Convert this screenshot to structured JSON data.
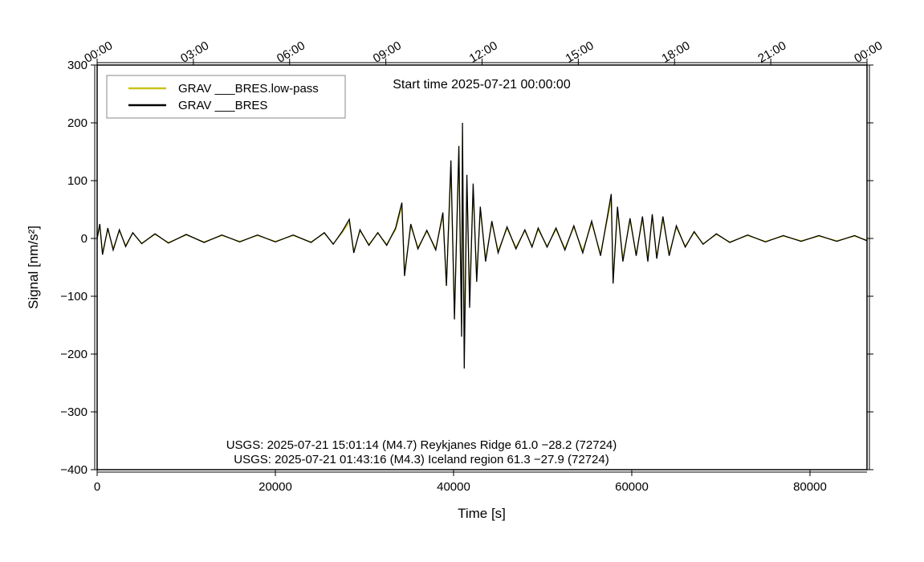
{
  "chart_data": {
    "type": "line",
    "title": "Start time 2025-07-21 00:00:00",
    "xlabel": "Time [s]",
    "ylabel": "Signal [nm/s²]",
    "annotations": [
      "USGS: 2025-07-21 15:01:14 (M4.7) Reykjanes Ridge 61.0 −28.2 (72724)",
      "USGS: 2025-07-21 01:43:16 (M4.3) Iceland region 61.3 −27.9 (72724)"
    ],
    "legend": "upper left",
    "xlim": [
      0,
      86400
    ],
    "xticks": [
      0,
      20000,
      40000,
      60000,
      80000
    ],
    "x2ticks": [
      {
        "value": 0,
        "label": "00:00"
      },
      {
        "value": 10800,
        "label": "03:00"
      },
      {
        "value": 21600,
        "label": "06:00"
      },
      {
        "value": 32400,
        "label": "09:00"
      },
      {
        "value": 43200,
        "label": "12:00"
      },
      {
        "value": 54000,
        "label": "15:00"
      },
      {
        "value": 64800,
        "label": "18:00"
      },
      {
        "value": 75600,
        "label": "21:00"
      },
      {
        "value": 86400,
        "label": "00:00"
      }
    ],
    "ylim": [
      -400,
      300
    ],
    "yticks": [
      {
        "value": -400,
        "label": "−400"
      },
      {
        "value": -300,
        "label": "−300"
      },
      {
        "value": -200,
        "label": "−200"
      },
      {
        "value": -100,
        "label": "−100"
      },
      0,
      100,
      200,
      300
    ],
    "x": [
      0,
      300,
      600,
      1200,
      1800,
      2500,
      3200,
      4000,
      5000,
      6500,
      8000,
      10000,
      12000,
      14000,
      16000,
      18000,
      20000,
      22000,
      24000,
      25500,
      26500,
      27500,
      28300,
      28800,
      29500,
      30500,
      31500,
      32500,
      33500,
      34200,
      34500,
      35200,
      36000,
      37000,
      38000,
      38800,
      39200,
      39700,
      40100,
      40600,
      40900,
      41000,
      41200,
      41500,
      41800,
      42200,
      42600,
      43000,
      43600,
      44300,
      45000,
      46000,
      47000,
      48000,
      48800,
      49500,
      50500,
      51500,
      52500,
      53500,
      54500,
      55500,
      56500,
      57400,
      57700,
      57900,
      58400,
      59000,
      59800,
      60500,
      61200,
      61800,
      62300,
      62800,
      63500,
      64200,
      65000,
      66000,
      67000,
      68000,
      69500,
      71000,
      73000,
      75000,
      77000,
      79000,
      81000,
      83000,
      85000,
      86400
    ],
    "series": [
      {
        "name": "GRAV ___BRES",
        "color": "#000000",
        "values": [
          0,
          25,
          -28,
          18,
          -20,
          15,
          -14,
          10,
          -9,
          8,
          -8,
          7,
          -7,
          6,
          -6,
          6,
          -6,
          6,
          -7,
          10,
          -10,
          12,
          33,
          -25,
          15,
          -12,
          10,
          -12,
          18,
          62,
          -65,
          25,
          -18,
          14,
          -20,
          45,
          -82,
          135,
          -140,
          160,
          -170,
          200,
          -225,
          110,
          -120,
          95,
          -75,
          55,
          -40,
          30,
          -25,
          20,
          -18,
          15,
          -15,
          18,
          -15,
          18,
          -20,
          22,
          -25,
          30,
          -30,
          50,
          77,
          -78,
          55,
          -40,
          35,
          -30,
          38,
          -40,
          42,
          -35,
          38,
          -30,
          22,
          -15,
          12,
          -10,
          8,
          -7,
          6,
          -6,
          5,
          -5,
          5,
          -5,
          5,
          -4
        ]
      },
      {
        "name": "GRAV ___BRES.low-pass",
        "color": "#c8c21a",
        "values": [
          0,
          22,
          -24,
          15,
          -17,
          13,
          -12,
          9,
          -8,
          7,
          -7,
          6,
          -6,
          5,
          -5,
          5,
          -5,
          5,
          -6,
          9,
          -9,
          10,
          28,
          -22,
          13,
          -10,
          9,
          -10,
          15,
          55,
          -58,
          21,
          -15,
          12,
          -17,
          38,
          -82,
          120,
          -125,
          140,
          -150,
          180,
          -170,
          95,
          -100,
          80,
          -65,
          48,
          -34,
          26,
          -21,
          17,
          -15,
          13,
          -13,
          15,
          -13,
          15,
          -17,
          19,
          -21,
          26,
          -26,
          43,
          68,
          -70,
          47,
          -34,
          30,
          -26,
          32,
          -34,
          36,
          -30,
          32,
          -26,
          19,
          -13,
          10,
          -9,
          7,
          -6,
          5,
          -5,
          4,
          -4,
          4,
          -4,
          4,
          -3
        ]
      }
    ]
  }
}
